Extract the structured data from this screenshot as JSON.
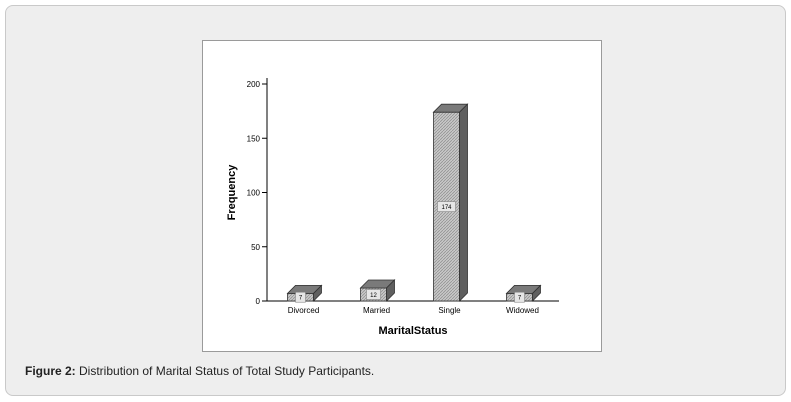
{
  "caption": {
    "label": "Figure 2:",
    "text": "Distribution of Marital Status of Total Study Participants."
  },
  "chart_data": {
    "type": "bar",
    "categories": [
      "Divorced",
      "Married",
      "Single",
      "Widowed"
    ],
    "values": [
      7,
      12,
      174,
      7
    ],
    "data_labels": [
      "7",
      "12",
      "174",
      "7"
    ],
    "xlabel": "MaritalStatus",
    "ylabel": "Frequency",
    "yticks": [
      0,
      50,
      100,
      150,
      200
    ],
    "ylim": [
      0,
      200
    ],
    "grid": false,
    "legend": "none",
    "style": "3d",
    "colors": {
      "front": "#b9b9b9",
      "top": "#7a7a7a",
      "side": "#5f5f5f",
      "axis": "#000000"
    }
  }
}
